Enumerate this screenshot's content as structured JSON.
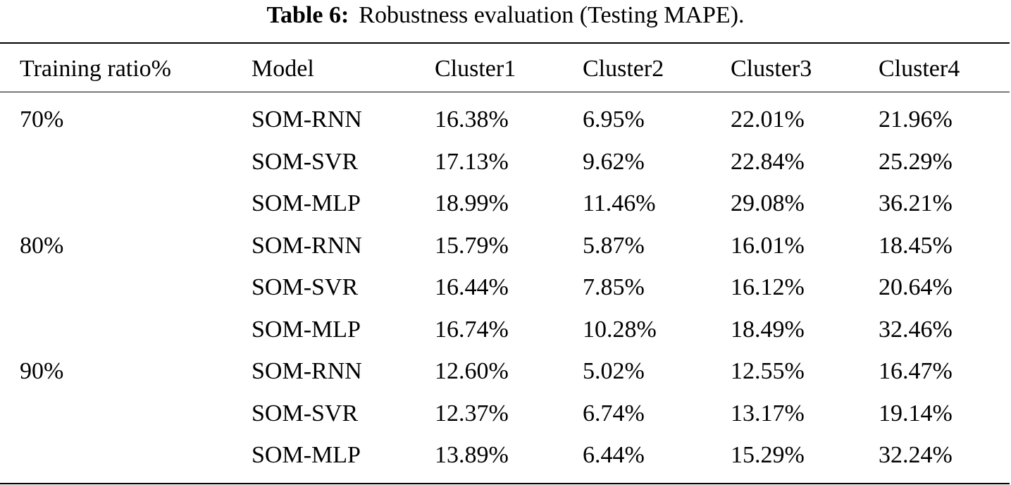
{
  "caption": {
    "label": "Table 6:",
    "text": "Robustness evaluation (Testing MAPE)."
  },
  "table": {
    "headers": [
      "Training ratio%",
      "Model",
      "Cluster1",
      "Cluster2",
      "Cluster3",
      "Cluster4"
    ],
    "rows": [
      {
        "ratio": "70%",
        "model": "SOM-RNN",
        "c1": "16.38%",
        "c2": "6.95%",
        "c3": "22.01%",
        "c4": "21.96%"
      },
      {
        "ratio": "",
        "model": "SOM-SVR",
        "c1": "17.13%",
        "c2": "9.62%",
        "c3": "22.84%",
        "c4": "25.29%"
      },
      {
        "ratio": "",
        "model": "SOM-MLP",
        "c1": "18.99%",
        "c2": "11.46%",
        "c3": "29.08%",
        "c4": "36.21%"
      },
      {
        "ratio": "80%",
        "model": "SOM-RNN",
        "c1": "15.79%",
        "c2": "5.87%",
        "c3": "16.01%",
        "c4": "18.45%"
      },
      {
        "ratio": "",
        "model": "SOM-SVR",
        "c1": "16.44%",
        "c2": "7.85%",
        "c3": "16.12%",
        "c4": "20.64%"
      },
      {
        "ratio": "",
        "model": "SOM-MLP",
        "c1": "16.74%",
        "c2": "10.28%",
        "c3": "18.49%",
        "c4": "32.46%"
      },
      {
        "ratio": "90%",
        "model": "SOM-RNN",
        "c1": "12.60%",
        "c2": "5.02%",
        "c3": "12.55%",
        "c4": "16.47%"
      },
      {
        "ratio": "",
        "model": "SOM-SVR",
        "c1": "12.37%",
        "c2": "6.74%",
        "c3": "13.17%",
        "c4": "19.14%"
      },
      {
        "ratio": "",
        "model": "SOM-MLP",
        "c1": "13.89%",
        "c2": "6.44%",
        "c3": "15.29%",
        "c4": "32.24%"
      }
    ]
  }
}
